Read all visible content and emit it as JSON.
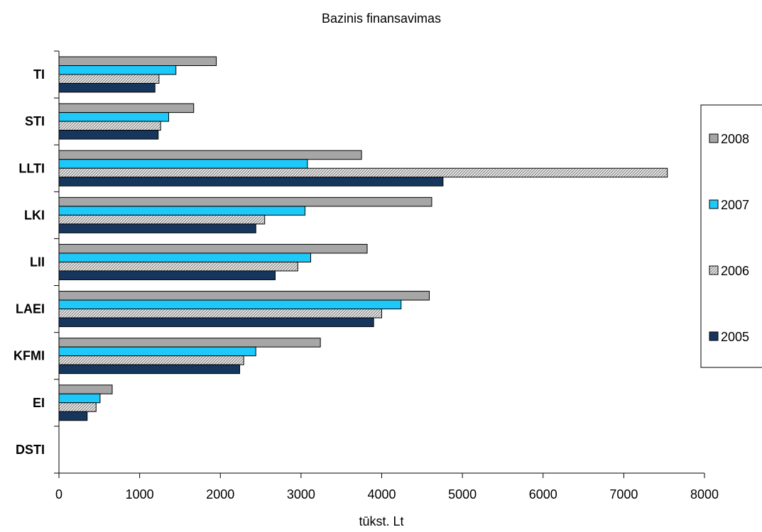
{
  "chart_data": {
    "type": "bar",
    "orientation": "horizontal",
    "title": "Bazinis finansavimas",
    "xlabel": "tūkst. Lt",
    "ylabel": "",
    "xlim": [
      0,
      8000
    ],
    "x_ticks": [
      "0",
      "1000",
      "2000",
      "3000",
      "4000",
      "5000",
      "6000",
      "7000",
      "8000"
    ],
    "grid": false,
    "legend_position": "right",
    "categories": [
      "TI",
      "STI",
      "LLTI",
      "LKI",
      "LII",
      "LAEI",
      "KFMI",
      "EI",
      "DSTI"
    ],
    "series": [
      {
        "name": "2008",
        "color": "#a6a6a6",
        "values": [
          1950,
          1670,
          3750,
          4620,
          3820,
          4590,
          3240,
          660,
          0
        ]
      },
      {
        "name": "2007",
        "color": "#1ec8f8",
        "values": [
          1450,
          1360,
          3080,
          3050,
          3120,
          4240,
          2440,
          510,
          0
        ]
      },
      {
        "name": "2006",
        "color": "#c8c8c8",
        "pattern": "hatched",
        "values": [
          1240,
          1260,
          7540,
          2550,
          2960,
          4000,
          2290,
          460,
          0
        ]
      },
      {
        "name": "2005",
        "color": "#17365d",
        "values": [
          1190,
          1230,
          4760,
          2440,
          2680,
          3900,
          2240,
          350,
          0
        ]
      }
    ]
  }
}
